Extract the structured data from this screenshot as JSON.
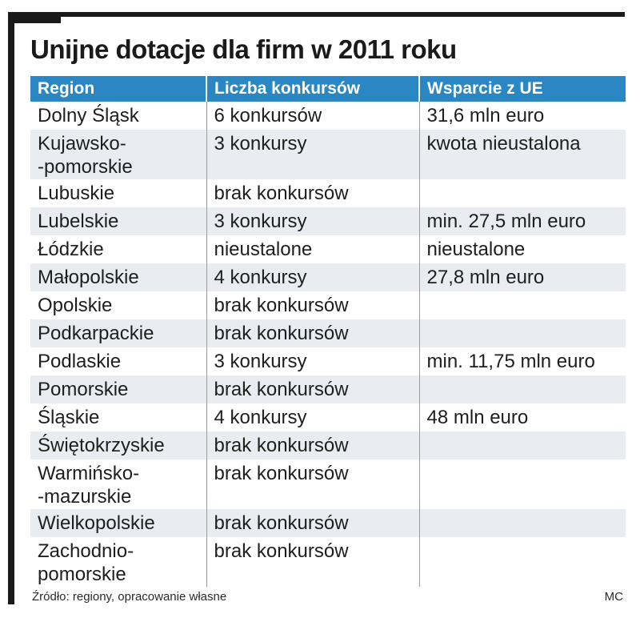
{
  "title": "Unijne dotacje dla firm w 2011 roku",
  "accent_color": "#2a87c3",
  "stripe_color": "#e9edf2",
  "chart_data": {
    "type": "table",
    "title": "Unijne dotacje dla firm w 2011 roku",
    "columns": [
      "Region",
      "Liczba konkursów",
      "Wsparcie z UE"
    ],
    "rows": [
      {
        "region": [
          "Dolny Śląsk"
        ],
        "contests": "6 konkursów",
        "support": "31,6 mln euro"
      },
      {
        "region": [
          "Kujawsko-",
          "-pomorskie"
        ],
        "contests": "3 konkursy",
        "support": "kwota nieustalona"
      },
      {
        "region": [
          "Lubuskie"
        ],
        "contests": "brak konkursów",
        "support": ""
      },
      {
        "region": [
          "Lubelskie"
        ],
        "contests": "3 konkursy",
        "support": "min. 27,5 mln euro"
      },
      {
        "region": [
          "Łódzkie"
        ],
        "contests": "nieustalone",
        "support": "nieustalone"
      },
      {
        "region": [
          "Małopolskie"
        ],
        "contests": "4 konkursy",
        "support": "27,8 mln euro"
      },
      {
        "region": [
          "Opolskie"
        ],
        "contests": "brak konkursów",
        "support": ""
      },
      {
        "region": [
          "Podkarpackie"
        ],
        "contests": "brak konkursów",
        "support": ""
      },
      {
        "region": [
          "Podlaskie"
        ],
        "contests": "3 konkursy",
        "support": "min. 11,75 mln euro"
      },
      {
        "region": [
          "Pomorskie"
        ],
        "contests": "brak konkursów",
        "support": ""
      },
      {
        "region": [
          "Śląskie"
        ],
        "contests": "4 konkursy",
        "support": "48 mln euro"
      },
      {
        "region": [
          "Świętokrzyskie"
        ],
        "contests": "brak konkursów",
        "support": ""
      },
      {
        "region": [
          "Warmińsko-",
          "-mazurskie"
        ],
        "contests": "brak konkursów",
        "support": ""
      },
      {
        "region": [
          "Wielkopolskie"
        ],
        "contests": "brak konkursów",
        "support": ""
      },
      {
        "region": [
          "Zachodnio-",
          "pomorskie"
        ],
        "contests": "brak konkursów",
        "support": ""
      }
    ]
  },
  "footer": {
    "source": "Źródło: regiony, opracowanie własne",
    "author": "MC"
  }
}
